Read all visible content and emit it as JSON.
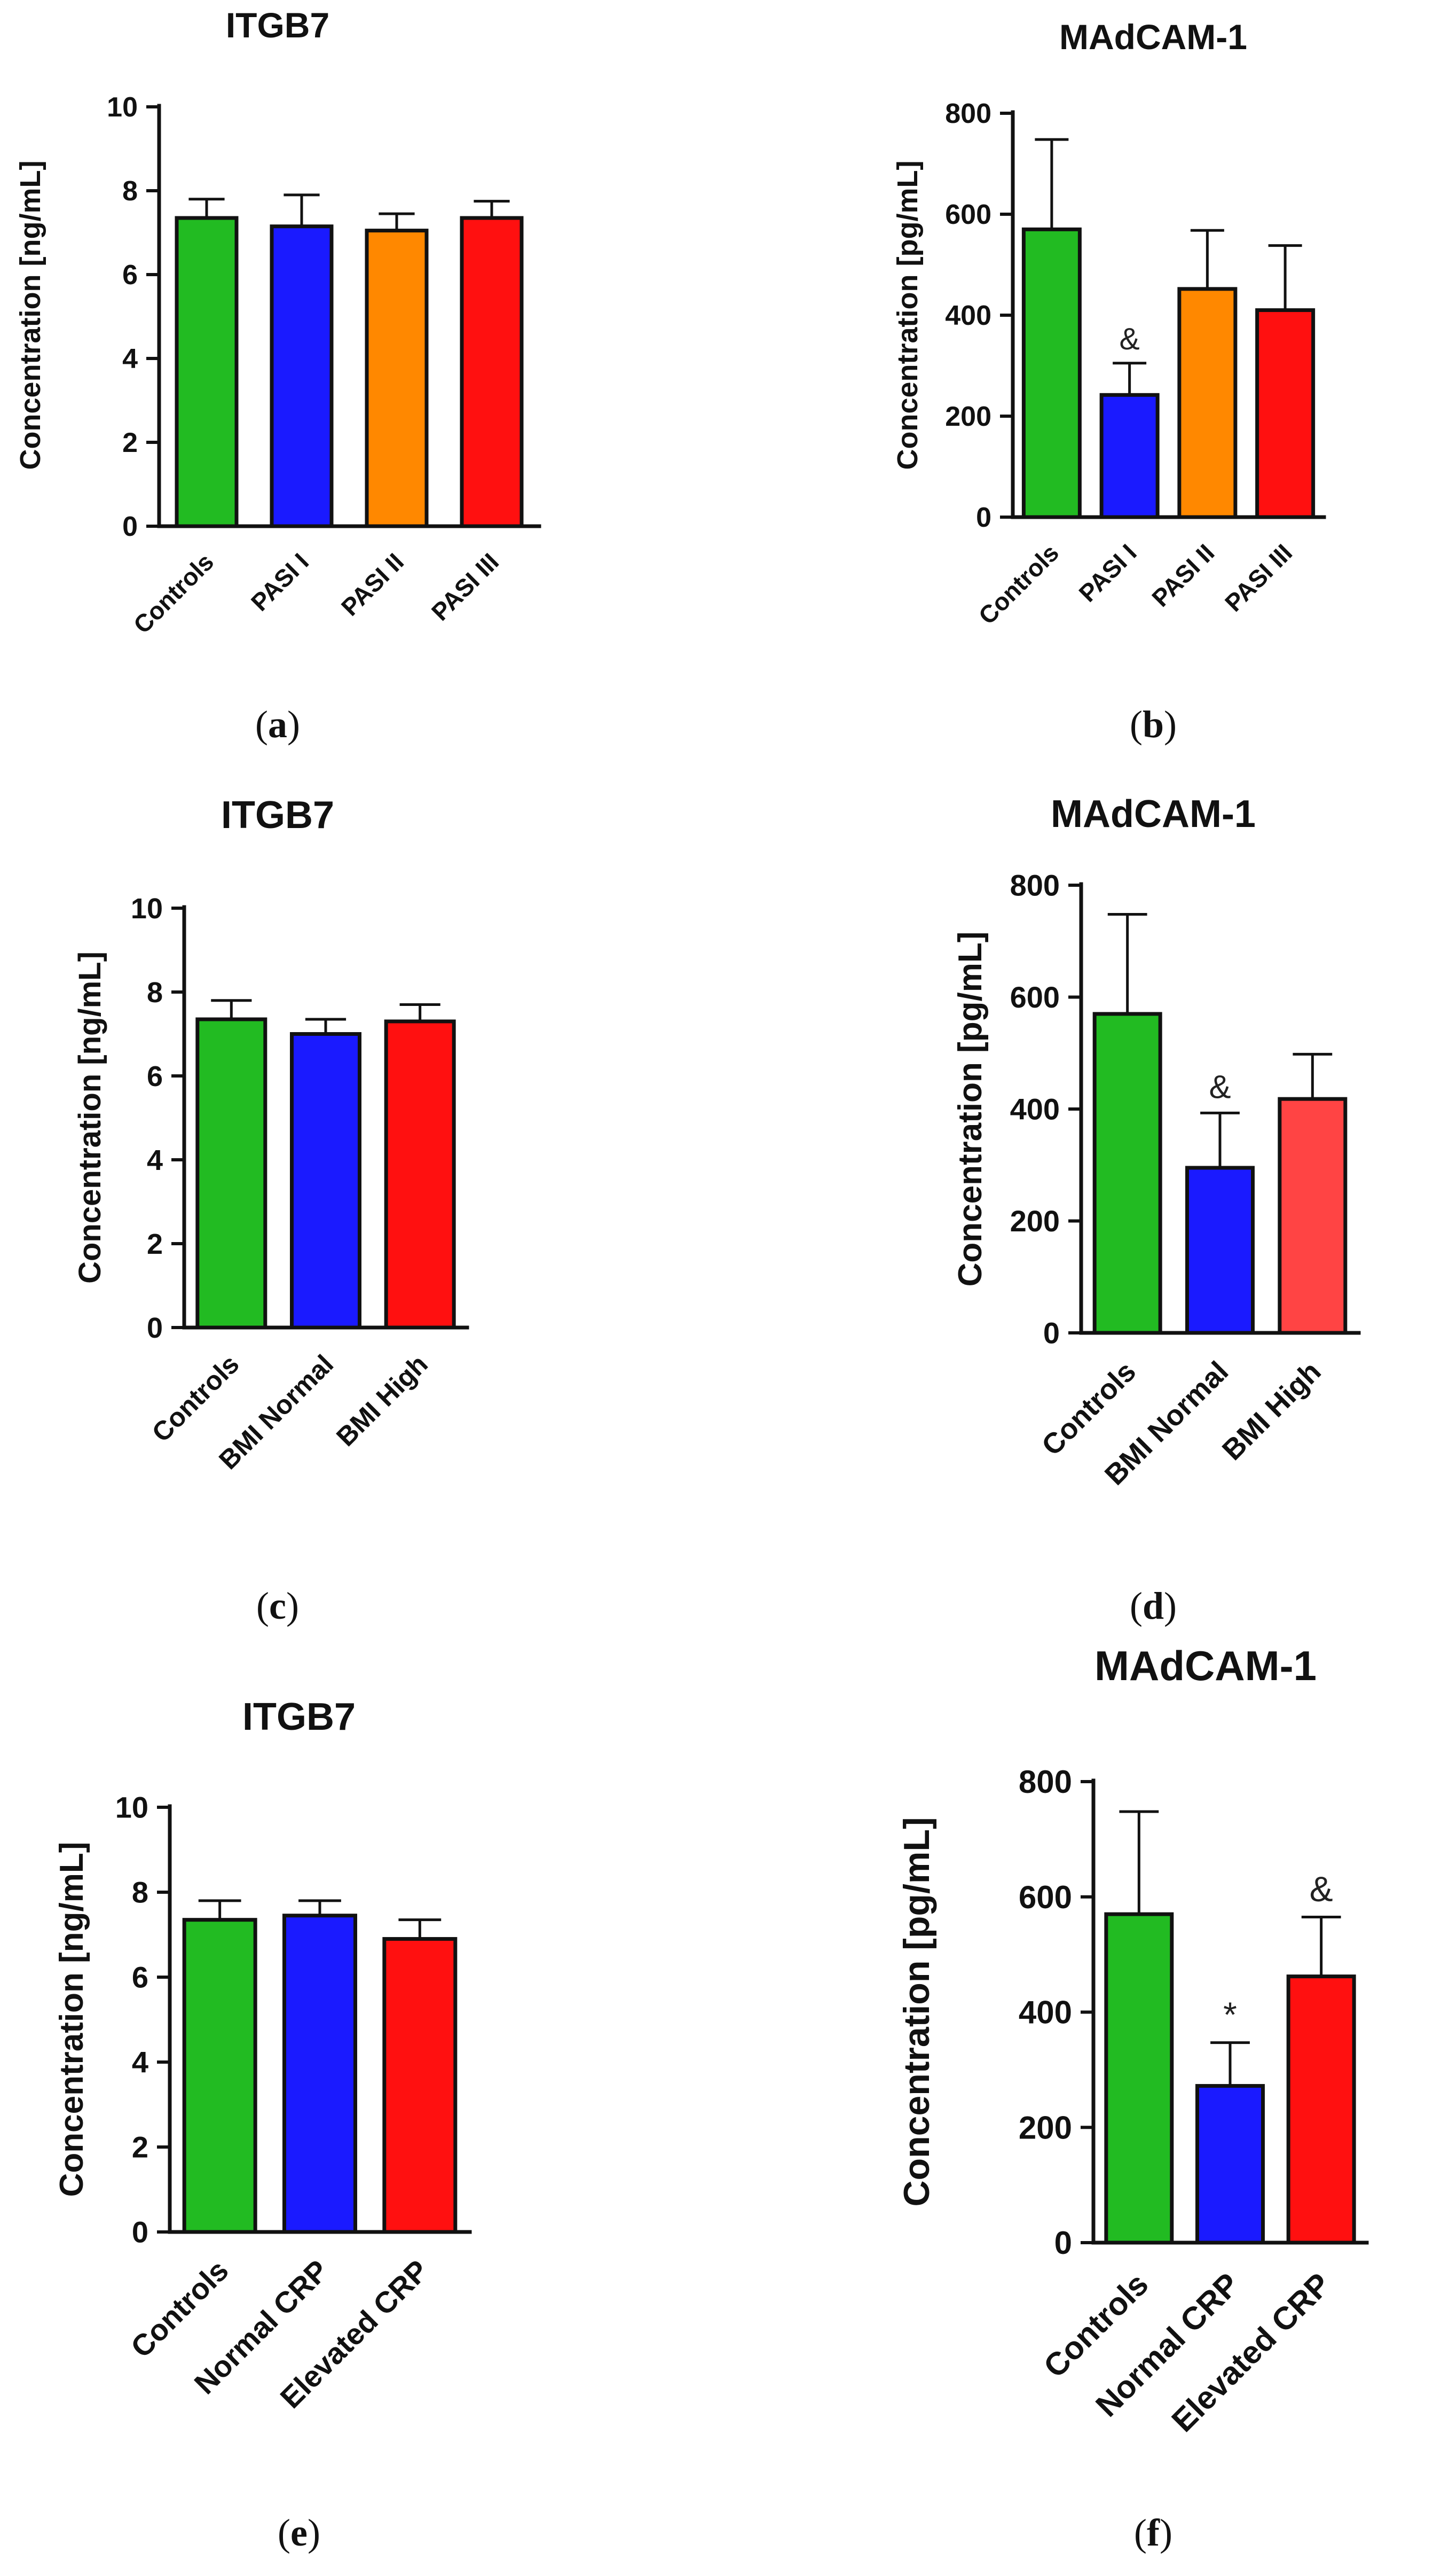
{
  "chart_data": [
    {
      "panel": "(a)",
      "type": "bar",
      "title": "ITGB7",
      "ylabel": "Concentration [ng/mL]",
      "xlabel": "",
      "ylim": [
        0,
        10
      ],
      "yticks": [
        0,
        2,
        4,
        6,
        8,
        10
      ],
      "categories": [
        "Controls",
        "PASI I",
        "PASI II",
        "PASI III"
      ],
      "values": [
        7.35,
        7.15,
        7.05,
        7.35
      ],
      "errors": [
        0.45,
        0.75,
        0.4,
        0.4
      ],
      "colors": [
        "#22bb22",
        "#1a1aff",
        "#ff8800",
        "#ff1010"
      ],
      "annotations": [
        "",
        "",
        "",
        ""
      ]
    },
    {
      "panel": "(b)",
      "type": "bar",
      "title": "MAdCAM-1",
      "ylabel": "Concentration [pg/mL]",
      "xlabel": "",
      "ylim": [
        0,
        800
      ],
      "yticks": [
        0,
        200,
        400,
        600,
        800
      ],
      "categories": [
        "Controls",
        "PASI I",
        "PASI II",
        "PASI III"
      ],
      "values": [
        570,
        242,
        452,
        410
      ],
      "errors": [
        178,
        63,
        116,
        128
      ],
      "colors": [
        "#22bb22",
        "#1a1aff",
        "#ff8800",
        "#ff1010"
      ],
      "annotations": [
        "",
        "&",
        "",
        ""
      ]
    },
    {
      "panel": "(c)",
      "type": "bar",
      "title": "ITGB7",
      "ylabel": "Concentration [ng/mL]",
      "xlabel": "",
      "ylim": [
        0,
        10
      ],
      "yticks": [
        0,
        2,
        4,
        6,
        8,
        10
      ],
      "categories": [
        "Controls",
        "BMI Normal",
        "BMI High"
      ],
      "values": [
        7.35,
        7.0,
        7.3
      ],
      "errors": [
        0.45,
        0.35,
        0.4
      ],
      "colors": [
        "#22bb22",
        "#1a1aff",
        "#ff1010"
      ],
      "annotations": [
        "",
        "",
        ""
      ]
    },
    {
      "panel": "(d)",
      "type": "bar",
      "title": "MAdCAM-1",
      "ylabel": "Concentration [pg/mL]",
      "xlabel": "",
      "ylim": [
        0,
        800
      ],
      "yticks": [
        0,
        200,
        400,
        600,
        800
      ],
      "categories": [
        "Controls",
        "BMI Normal",
        "BMI High"
      ],
      "values": [
        570,
        295,
        418
      ],
      "errors": [
        178,
        98,
        80
      ],
      "colors": [
        "#22bb22",
        "#1a1aff",
        "#ff4444"
      ],
      "annotations": [
        "",
        "&",
        ""
      ]
    },
    {
      "panel": "(e)",
      "type": "bar",
      "title": "ITGB7",
      "ylabel": "Concentration [ng/mL]",
      "xlabel": "",
      "ylim": [
        0,
        10
      ],
      "yticks": [
        0,
        2,
        4,
        6,
        8,
        10
      ],
      "categories": [
        "Controls",
        "Normal CRP",
        "Elevated CRP"
      ],
      "values": [
        7.35,
        7.45,
        6.9
      ],
      "errors": [
        0.45,
        0.35,
        0.45
      ],
      "colors": [
        "#22bb22",
        "#1a1aff",
        "#ff1010"
      ],
      "annotations": [
        "",
        "",
        ""
      ]
    },
    {
      "panel": "(f)",
      "type": "bar",
      "title": "MAdCAM-1",
      "ylabel": "Concentration [pg/mL]",
      "xlabel": "",
      "ylim": [
        0,
        800
      ],
      "yticks": [
        0,
        200,
        400,
        600,
        800
      ],
      "categories": [
        "Controls",
        "Normal CRP",
        "Elevated CRP"
      ],
      "values": [
        570,
        272,
        462
      ],
      "errors": [
        178,
        75,
        103
      ],
      "colors": [
        "#22bb22",
        "#1a1aff",
        "#ff1010"
      ],
      "annotations": [
        "",
        "*",
        "&"
      ]
    }
  ]
}
